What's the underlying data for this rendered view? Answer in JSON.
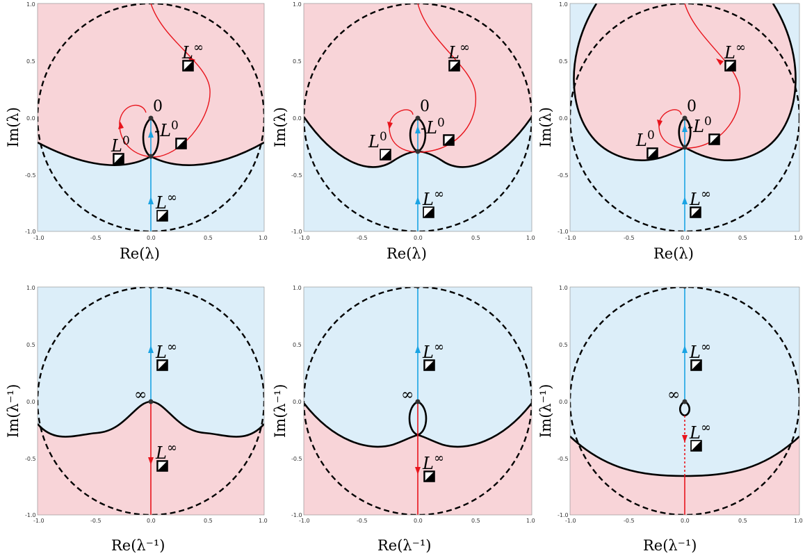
{
  "colors": {
    "pink": "#f8d4d8",
    "blue": "#dceef9",
    "red": "#e8141c",
    "cyan": "#1aa3e3",
    "black": "#000000"
  },
  "ticks": {
    "x": [
      "-1.0",
      "-0.5",
      "0.0",
      "0.5",
      "1.0"
    ],
    "y": [
      "1.0",
      "0.5",
      "0.0",
      "-0.5",
      "-1.0"
    ]
  },
  "axis_labels": {
    "top_x": "Re(λ)",
    "top_y": "Im(λ)",
    "bottom_x": "Re(λ⁻¹)",
    "bottom_y": "Im(λ⁻¹)"
  },
  "labels": {
    "L": "L",
    "sup_inf": "∞",
    "sup_zero": "0",
    "zero": "0",
    "infinity": "∞",
    "minus": "-"
  },
  "icons": [
    "box-half-filled-icon",
    "box-half-empty-icon"
  ],
  "panels": [
    {
      "id": "top-left",
      "row": "top",
      "top_fill": "pink",
      "bottom_fill": "blue"
    },
    {
      "id": "top-middle",
      "row": "top",
      "top_fill": "pink",
      "bottom_fill": "blue"
    },
    {
      "id": "top-right",
      "row": "top",
      "top_fill": "pink",
      "bottom_fill": "blue"
    },
    {
      "id": "bottom-left",
      "row": "bottom",
      "top_fill": "blue",
      "bottom_fill": "pink"
    },
    {
      "id": "bottom-middle",
      "row": "bottom",
      "top_fill": "blue",
      "bottom_fill": "pink"
    },
    {
      "id": "bottom-right",
      "row": "bottom",
      "top_fill": "blue",
      "bottom_fill": "pink"
    }
  ]
}
